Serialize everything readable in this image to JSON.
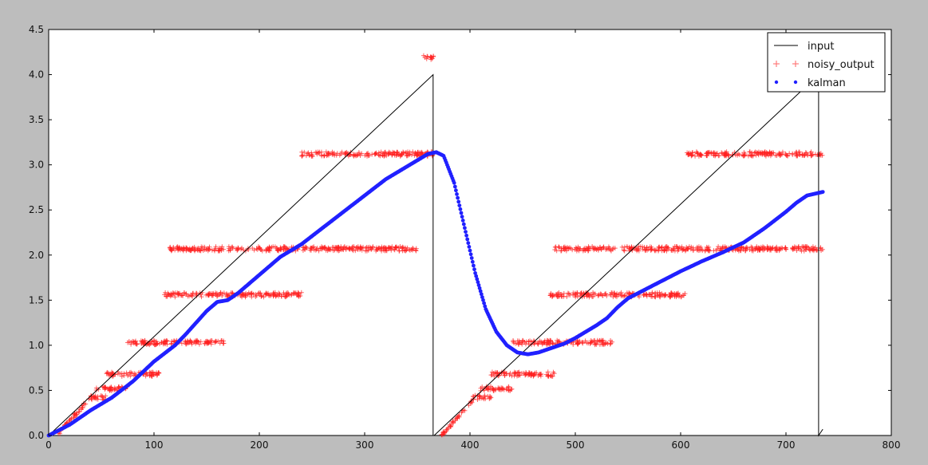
{
  "chart_data": {
    "type": "line",
    "title": "",
    "xlabel": "",
    "ylabel": "",
    "xlim": [
      0,
      800
    ],
    "ylim": [
      0,
      4.5
    ],
    "xticks": [
      0,
      100,
      200,
      300,
      400,
      500,
      600,
      700,
      800
    ],
    "yticks": [
      0.0,
      0.5,
      1.0,
      1.5,
      2.0,
      2.5,
      3.0,
      3.5,
      4.0,
      4.5
    ],
    "xtick_labels": [
      "0",
      "100",
      "200",
      "300",
      "400",
      "500",
      "600",
      "700",
      "800"
    ],
    "ytick_labels": [
      "0.0",
      "0.5",
      "1.0",
      "1.5",
      "2.0",
      "2.5",
      "3.0",
      "3.5",
      "4.0",
      "4.5"
    ],
    "grid": false,
    "legend_position": "top-right",
    "series": [
      {
        "name": "input",
        "style": "line",
        "color": "#000000",
        "x": [
          0,
          365,
          365,
          366,
          731,
          731,
          735
        ],
        "y": [
          0,
          4.0,
          0,
          0,
          4.0,
          0,
          0.07
        ]
      },
      {
        "name": "noisy_output",
        "style": "plus-markers",
        "color": "#ff2020",
        "levels": [
          {
            "y": 4.19,
            "x_range": [
              356,
              366
            ]
          },
          {
            "y": 3.12,
            "x_range": [
              240,
              365
            ]
          },
          {
            "y": 2.07,
            "x_range": [
              115,
              350
            ]
          },
          {
            "y": 1.56,
            "x_range": [
              110,
              240
            ]
          },
          {
            "y": 1.03,
            "x_range": [
              75,
              168
            ]
          },
          {
            "y": 0.68,
            "x_range": [
              55,
              105
            ]
          },
          {
            "y": 0.52,
            "x_range": [
              45,
              75
            ]
          },
          {
            "y": 0.42,
            "x_range": [
              38,
              55
            ]
          },
          {
            "y": 3.12,
            "x_range": [
              605,
              735
            ]
          },
          {
            "y": 2.07,
            "x_range": [
              480,
              735
            ]
          },
          {
            "y": 1.56,
            "x_range": [
              475,
              605
            ]
          },
          {
            "y": 1.03,
            "x_range": [
              440,
              535
            ]
          },
          {
            "y": 0.68,
            "x_range": [
              420,
              480
            ]
          },
          {
            "y": 0.52,
            "x_range": [
              410,
              440
            ]
          },
          {
            "y": 0.42,
            "x_range": [
              403,
              420
            ]
          }
        ]
      },
      {
        "name": "kalman",
        "style": "dot-markers",
        "color": "#2020ff",
        "x": [
          0,
          20,
          40,
          60,
          80,
          100,
          120,
          130,
          140,
          150,
          160,
          170,
          180,
          200,
          220,
          240,
          260,
          280,
          300,
          320,
          340,
          360,
          368,
          375,
          385,
          395,
          405,
          415,
          425,
          435,
          445,
          455,
          465,
          475,
          490,
          500,
          510,
          520,
          530,
          540,
          550,
          560,
          580,
          600,
          620,
          640,
          660,
          680,
          700,
          710,
          720,
          735
        ],
        "y": [
          0.0,
          0.12,
          0.28,
          0.42,
          0.6,
          0.82,
          1.0,
          1.12,
          1.25,
          1.38,
          1.48,
          1.5,
          1.58,
          1.78,
          1.98,
          2.12,
          2.3,
          2.48,
          2.66,
          2.84,
          2.98,
          3.12,
          3.14,
          3.1,
          2.8,
          2.3,
          1.8,
          1.4,
          1.15,
          1.0,
          0.92,
          0.9,
          0.92,
          0.96,
          1.02,
          1.08,
          1.15,
          1.22,
          1.3,
          1.42,
          1.52,
          1.58,
          1.7,
          1.82,
          1.93,
          2.03,
          2.14,
          2.3,
          2.48,
          2.58,
          2.66,
          2.7
        ]
      }
    ]
  }
}
